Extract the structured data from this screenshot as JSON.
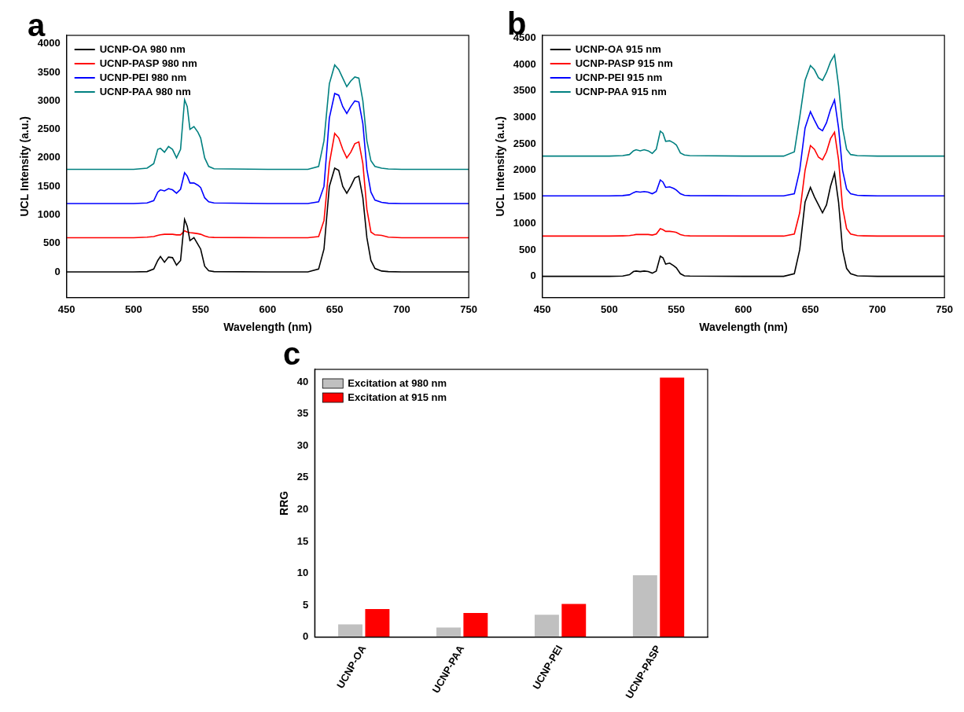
{
  "chart_data": [
    {
      "type": "line",
      "title": "a",
      "x_label": "Wavelength (nm)",
      "y_label": "UCL Intensity (a.u.)",
      "x": [
        450,
        500,
        510,
        515,
        518,
        520,
        523,
        526,
        529,
        532,
        535,
        538,
        540,
        542,
        545,
        548,
        550,
        553,
        556,
        560,
        600,
        630,
        638,
        642,
        646,
        650,
        653,
        656,
        659,
        662,
        665,
        668,
        671,
        674,
        677,
        680,
        685,
        690,
        700,
        750
      ],
      "series": [
        {
          "name": "UCNP-OA 980 nm",
          "color": "#000000",
          "values": [
            0,
            0,
            5,
            50,
            200,
            270,
            170,
            260,
            250,
            120,
            200,
            920,
            800,
            550,
            600,
            480,
            400,
            100,
            20,
            5,
            0,
            0,
            50,
            400,
            1500,
            1820,
            1780,
            1500,
            1380,
            1500,
            1650,
            1680,
            1300,
            600,
            200,
            60,
            15,
            5,
            0,
            0
          ]
        },
        {
          "name": "UCNP-PASP 980 nm",
          "color": "#ff0000",
          "values": [
            600,
            600,
            610,
            620,
            640,
            650,
            660,
            660,
            660,
            650,
            650,
            720,
            700,
            690,
            680,
            670,
            660,
            630,
            610,
            605,
            600,
            600,
            620,
            900,
            1900,
            2430,
            2350,
            2150,
            2000,
            2100,
            2250,
            2280,
            1900,
            1100,
            700,
            650,
            640,
            610,
            600,
            600
          ]
        },
        {
          "name": "UCNP-PEI 980 nm",
          "color": "#0000ff",
          "values": [
            1200,
            1200,
            1210,
            1250,
            1400,
            1440,
            1420,
            1460,
            1440,
            1380,
            1450,
            1740,
            1680,
            1560,
            1560,
            1520,
            1480,
            1300,
            1230,
            1210,
            1200,
            1200,
            1230,
            1500,
            2700,
            3130,
            3100,
            2900,
            2780,
            2900,
            3000,
            2980,
            2600,
            1800,
            1400,
            1260,
            1220,
            1205,
            1200,
            1200
          ]
        },
        {
          "name": "UCNP-PAA 980 nm",
          "color": "#008080",
          "values": [
            1800,
            1800,
            1820,
            1900,
            2150,
            2170,
            2100,
            2200,
            2150,
            2000,
            2150,
            3020,
            2900,
            2500,
            2550,
            2450,
            2350,
            2000,
            1850,
            1810,
            1800,
            1800,
            1850,
            2300,
            3300,
            3630,
            3550,
            3400,
            3250,
            3350,
            3420,
            3400,
            3000,
            2300,
            1950,
            1850,
            1820,
            1805,
            1800,
            1800
          ]
        }
      ],
      "xlim": [
        450,
        750
      ],
      "xticks": [
        450,
        500,
        550,
        600,
        650,
        700,
        750
      ],
      "ylim": [
        -450,
        4150
      ],
      "yticks": [
        0,
        500,
        1000,
        1500,
        2000,
        2500,
        3000,
        3500,
        4000
      ],
      "grid": false,
      "legend": "upper left"
    },
    {
      "type": "line",
      "title": "b",
      "x_label": "Wavelength (nm)",
      "y_label": "UCL Intensity (a.u.)",
      "x": [
        450,
        500,
        510,
        515,
        518,
        520,
        523,
        526,
        529,
        532,
        535,
        538,
        540,
        542,
        545,
        548,
        550,
        553,
        556,
        560,
        600,
        630,
        638,
        642,
        646,
        650,
        653,
        656,
        659,
        662,
        665,
        668,
        671,
        674,
        677,
        680,
        685,
        690,
        700,
        750
      ],
      "series": [
        {
          "name": "UCNP-OA 915 nm",
          "color": "#000000",
          "values": [
            0,
            0,
            5,
            30,
            90,
            100,
            90,
            100,
            90,
            60,
            100,
            380,
            350,
            230,
            250,
            200,
            160,
            50,
            10,
            5,
            0,
            0,
            50,
            500,
            1400,
            1680,
            1500,
            1350,
            1200,
            1350,
            1700,
            1950,
            1400,
            500,
            150,
            50,
            10,
            5,
            0,
            0
          ]
        },
        {
          "name": "UCNP-PASP 915 nm",
          "color": "#ff0000",
          "values": [
            760,
            760,
            765,
            770,
            780,
            790,
            790,
            790,
            790,
            780,
            800,
            900,
            880,
            850,
            850,
            840,
            830,
            790,
            770,
            765,
            760,
            760,
            800,
            1200,
            2000,
            2470,
            2400,
            2250,
            2200,
            2350,
            2600,
            2720,
            2200,
            1300,
            900,
            800,
            770,
            765,
            760,
            760
          ]
        },
        {
          "name": "UCNP-PEI 915 nm",
          "color": "#0000ff",
          "values": [
            1520,
            1520,
            1525,
            1540,
            1580,
            1600,
            1590,
            1600,
            1590,
            1560,
            1600,
            1820,
            1780,
            1680,
            1690,
            1660,
            1630,
            1560,
            1530,
            1525,
            1520,
            1520,
            1560,
            2000,
            2800,
            3110,
            2950,
            2800,
            2750,
            2900,
            3150,
            3330,
            2800,
            2000,
            1650,
            1560,
            1530,
            1525,
            1520,
            1520
          ]
        },
        {
          "name": "UCNP-PAA 915 nm",
          "color": "#008080",
          "values": [
            2270,
            2270,
            2280,
            2300,
            2370,
            2390,
            2370,
            2390,
            2370,
            2320,
            2400,
            2740,
            2700,
            2550,
            2560,
            2520,
            2480,
            2330,
            2290,
            2280,
            2270,
            2270,
            2350,
            3000,
            3700,
            3980,
            3900,
            3750,
            3700,
            3850,
            4050,
            4180,
            3600,
            2800,
            2400,
            2300,
            2280,
            2275,
            2270,
            2270
          ]
        }
      ],
      "xlim": [
        450,
        750
      ],
      "xticks": [
        450,
        500,
        550,
        600,
        650,
        700,
        750
      ],
      "ylim": [
        -400,
        4550
      ],
      "yticks": [
        0,
        500,
        1000,
        1500,
        2000,
        2500,
        3000,
        3500,
        4000,
        4500
      ],
      "grid": false,
      "legend": "upper left"
    },
    {
      "type": "bar",
      "title": "c",
      "y_label": "RRG",
      "categories": [
        "UCNP-OA",
        "UCNP-PAA",
        "UCNP-PEI",
        "UCNP-PASP"
      ],
      "series": [
        {
          "name": "Excitation at 980 nm",
          "color": "#c0c0c0",
          "values": [
            2.0,
            1.5,
            3.5,
            9.7
          ]
        },
        {
          "name": "Excitation at 915 nm",
          "color": "#ff0000",
          "values": [
            4.4,
            3.8,
            5.2,
            40.7
          ]
        }
      ],
      "ylim": [
        0,
        42
      ],
      "yticks": [
        0,
        5,
        10,
        15,
        20,
        25,
        30,
        35,
        40
      ],
      "grid": false,
      "legend": "upper left"
    }
  ]
}
